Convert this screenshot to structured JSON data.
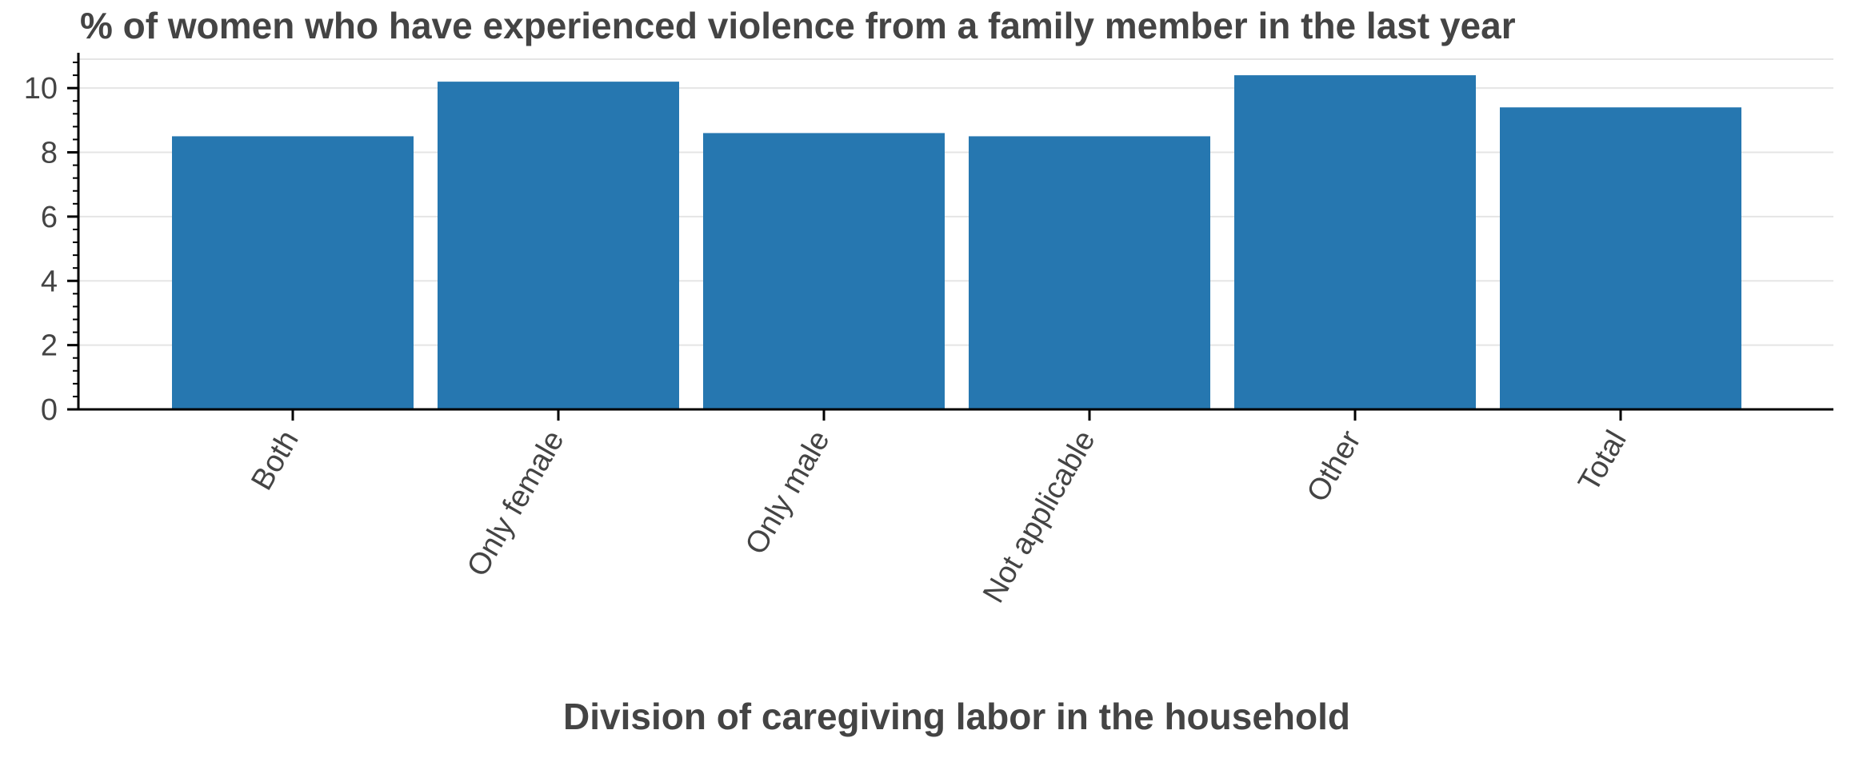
{
  "chart_data": {
    "type": "bar",
    "title": "% of women who have experienced violence from a family member in the last year",
    "xlabel": "Division of caregiving labor in the household",
    "ylabel": "",
    "categories": [
      "Both",
      "Only female",
      "Only male",
      "Not applicable",
      "Other",
      "Total"
    ],
    "values": [
      8.5,
      10.2,
      8.6,
      8.5,
      10.4,
      9.4
    ],
    "ylim": [
      0,
      10.9
    ],
    "yticks": [
      0,
      2,
      4,
      6,
      8,
      10
    ],
    "ytick_labels": [
      "0",
      "2",
      "4",
      "6",
      "8",
      "10"
    ],
    "grid": true,
    "legend": "none",
    "bar_color": "#2677b0"
  }
}
